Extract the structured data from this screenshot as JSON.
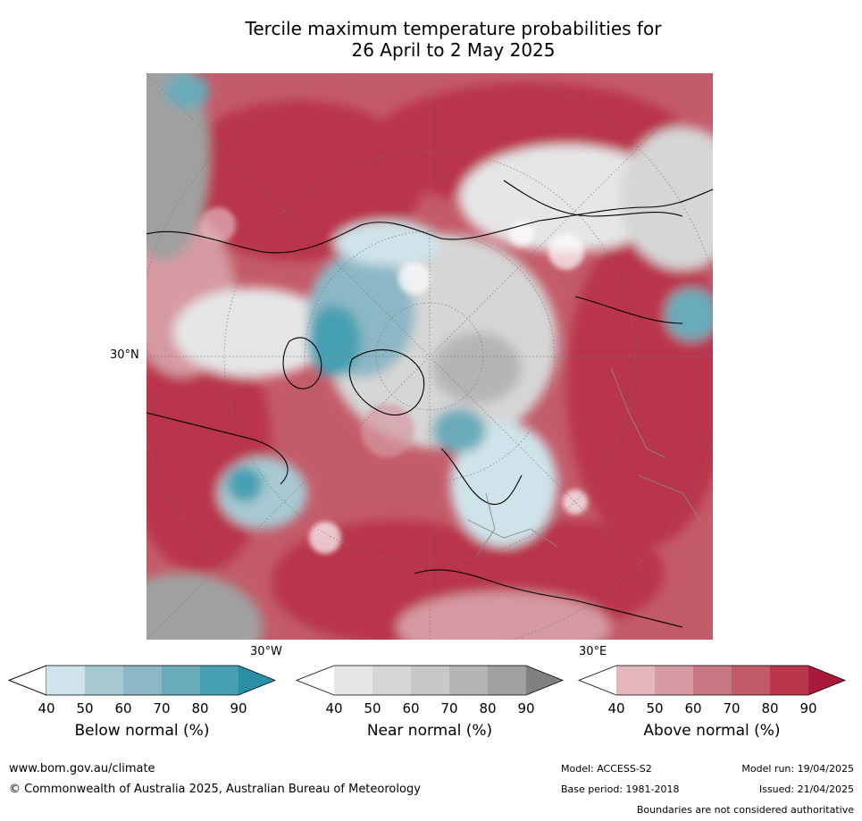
{
  "title_line1": "Tercile maximum temperature probabilities for",
  "title_line2": "26 April to 2 May 2025",
  "map": {
    "lat_label": "30°N",
    "lon_label_left": "30°W",
    "lon_label_right": "30°E"
  },
  "colorbars": [
    {
      "name": "below",
      "label": "Below normal (%)",
      "ticks": [
        "40",
        "50",
        "60",
        "70",
        "80",
        "90"
      ],
      "colors": [
        "#cfe4ea",
        "#a8c9d1",
        "#8cb7c5",
        "#6aabb9",
        "#45a0b2",
        "#2a8fa5"
      ]
    },
    {
      "name": "near",
      "label": "Near normal (%)",
      "ticks": [
        "40",
        "50",
        "60",
        "70",
        "80",
        "90"
      ],
      "colors": [
        "#e6e6e6",
        "#d6d6d6",
        "#c8c8c8",
        "#b5b5b5",
        "#a0a0a0",
        "#808080"
      ]
    },
    {
      "name": "above",
      "label": "Above normal (%)",
      "ticks": [
        "40",
        "50",
        "60",
        "70",
        "80",
        "90"
      ],
      "colors": [
        "#e4b7bd",
        "#d69aa2",
        "#c97782",
        "#c45b69",
        "#b9364b",
        "#a8193a"
      ]
    }
  ],
  "footer": {
    "website": "www.bom.gov.au/climate",
    "copyright": "© Commonwealth of Australia 2025, Australian Bureau of Meteorology",
    "model": "Model: ACCESS-S2",
    "base_period": "Base period: 1981-2018",
    "model_run": "Model run: 19/04/2025",
    "issued": "Issued: 21/04/2025",
    "disclaimer": "Boundaries are not considered authoritative"
  }
}
